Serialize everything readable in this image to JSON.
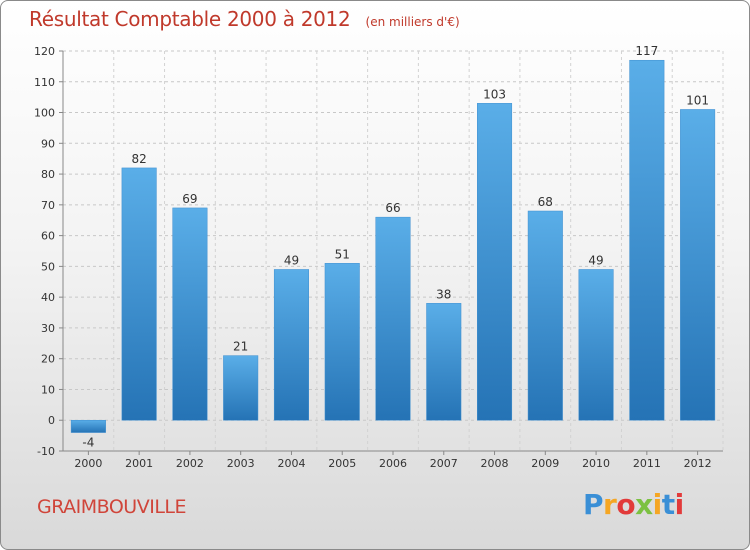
{
  "header": {
    "title": "Résultat Comptable 2000 à 2012",
    "subtitle": "(en milliers d'€)"
  },
  "footer": {
    "commune": "GRAIMBOUVILLE",
    "logo_letters": [
      "P",
      "r",
      "o",
      "x",
      "i",
      "t",
      "i"
    ],
    "logo_colors": [
      "#3a8fd6",
      "#f5a623",
      "#e23a3a",
      "#7cc142",
      "#f5a623",
      "#3a8fd6",
      "#e23a3a"
    ]
  },
  "chart_data": {
    "type": "bar",
    "title": "Résultat Comptable 2000 à 2012",
    "subtitle": "(en milliers d'€)",
    "categories": [
      "2000",
      "2001",
      "2002",
      "2003",
      "2004",
      "2005",
      "2006",
      "2007",
      "2008",
      "2009",
      "2010",
      "2011",
      "2012"
    ],
    "values": [
      -4,
      82,
      69,
      21,
      49,
      51,
      66,
      38,
      103,
      68,
      49,
      117,
      101
    ],
    "data_labels": [
      "-4",
      "82",
      "69",
      "21",
      "49",
      "51",
      "66",
      "38",
      "103",
      "68",
      "49",
      "117",
      "101"
    ],
    "yticks": [
      -10,
      0,
      10,
      20,
      30,
      40,
      50,
      60,
      70,
      80,
      90,
      100,
      110,
      120
    ],
    "ylim": [
      -10,
      120
    ],
    "xlabel": "",
    "ylabel": "",
    "grid": true,
    "bar_color": "#4a9fe0",
    "bar_color_dark": "#2a74b8"
  }
}
